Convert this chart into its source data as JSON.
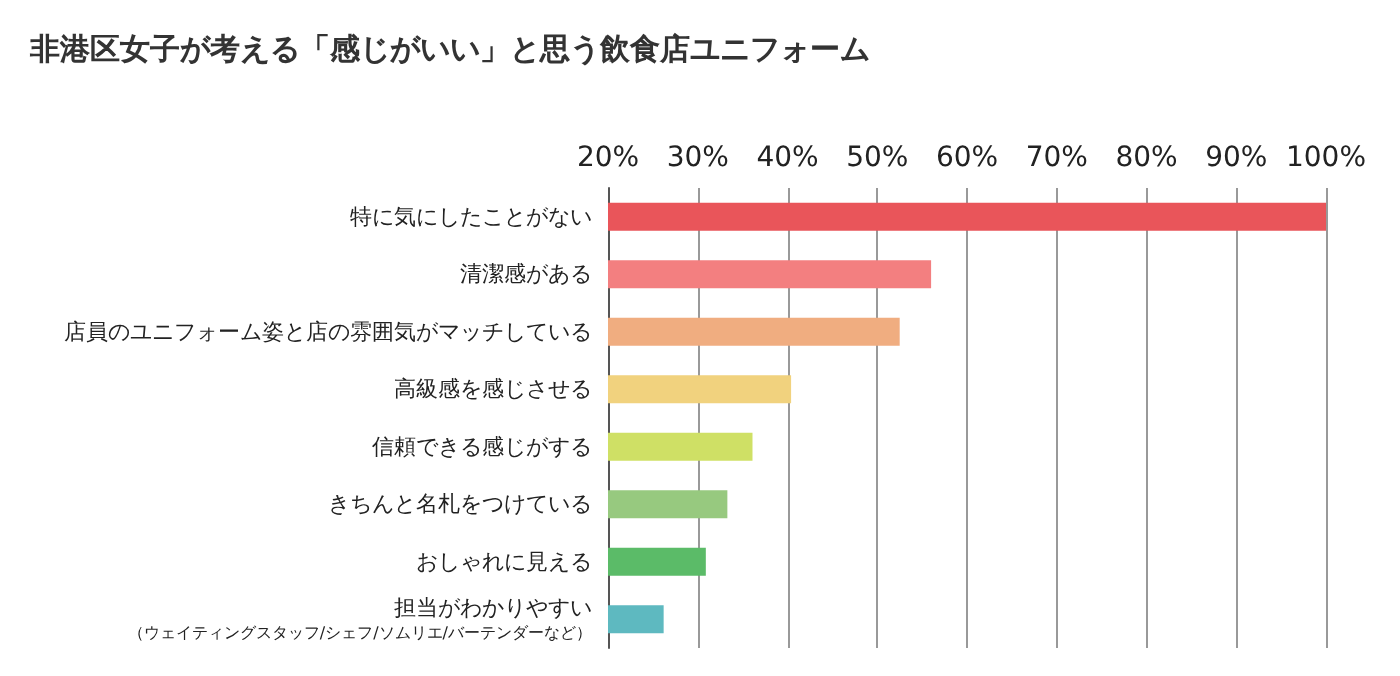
{
  "chart_data": {
    "type": "bar",
    "orientation": "horizontal",
    "title": "非港区女子が考える「感じがいい」と思う飲食店ユニフォーム",
    "categories": [
      "特に気にしたことがない",
      "清潔感がある",
      "店員のユニフォーム姿と店の雰囲気がマッチしている",
      "高級感を感じさせる",
      "信頼できる感じがする",
      "きちんと名札をつけている",
      "おしゃれに見える",
      "担当がわかりやすい（ウェイティングスタッフ/シェフ/ソムリエ/バーテンダーなど）"
    ],
    "values": [
      100,
      56,
      52.5,
      40.4,
      36.1,
      33.3,
      30.9,
      26.2
    ],
    "colors": [
      "#e9555a",
      "#f37f80",
      "#f0ad80",
      "#f1d27e",
      "#cfe065",
      "#97c97f",
      "#5bbb68",
      "#5eb9c0"
    ],
    "xlim": [
      20,
      100
    ],
    "xticks": [
      {
        "value": 20,
        "label": "20%"
      },
      {
        "value": 30,
        "label": "30%"
      },
      {
        "value": 40,
        "label": "40%"
      },
      {
        "value": 50,
        "label": "50%"
      },
      {
        "value": 60,
        "label": "60%"
      },
      {
        "value": 70,
        "label": "70%"
      },
      {
        "value": 80,
        "label": "80%"
      },
      {
        "value": 90,
        "label": "90%"
      },
      {
        "value": 100,
        "label": "100%"
      }
    ],
    "grid": "x"
  }
}
